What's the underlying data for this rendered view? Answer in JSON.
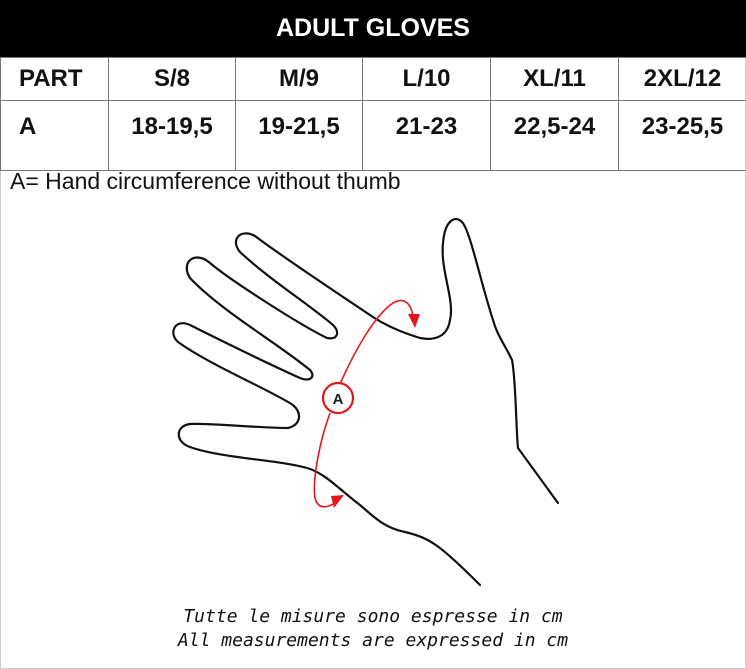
{
  "title": "ADULT GLOVES",
  "table": {
    "headers": [
      "PART",
      "S/8",
      "M/9",
      "L/10",
      "XL/11",
      "2XL/12"
    ],
    "rows": [
      [
        "A",
        "18-19,5",
        "19-21,5",
        "21-23",
        "22,5-24",
        "23-25,5"
      ]
    ]
  },
  "legend": "A= Hand circumference without thumb",
  "diagram": {
    "marker": "A",
    "accent": "#e3171b"
  },
  "footnotes": [
    "Tutte le misure sono espresse in cm",
    "All measurements are expressed in cm"
  ]
}
